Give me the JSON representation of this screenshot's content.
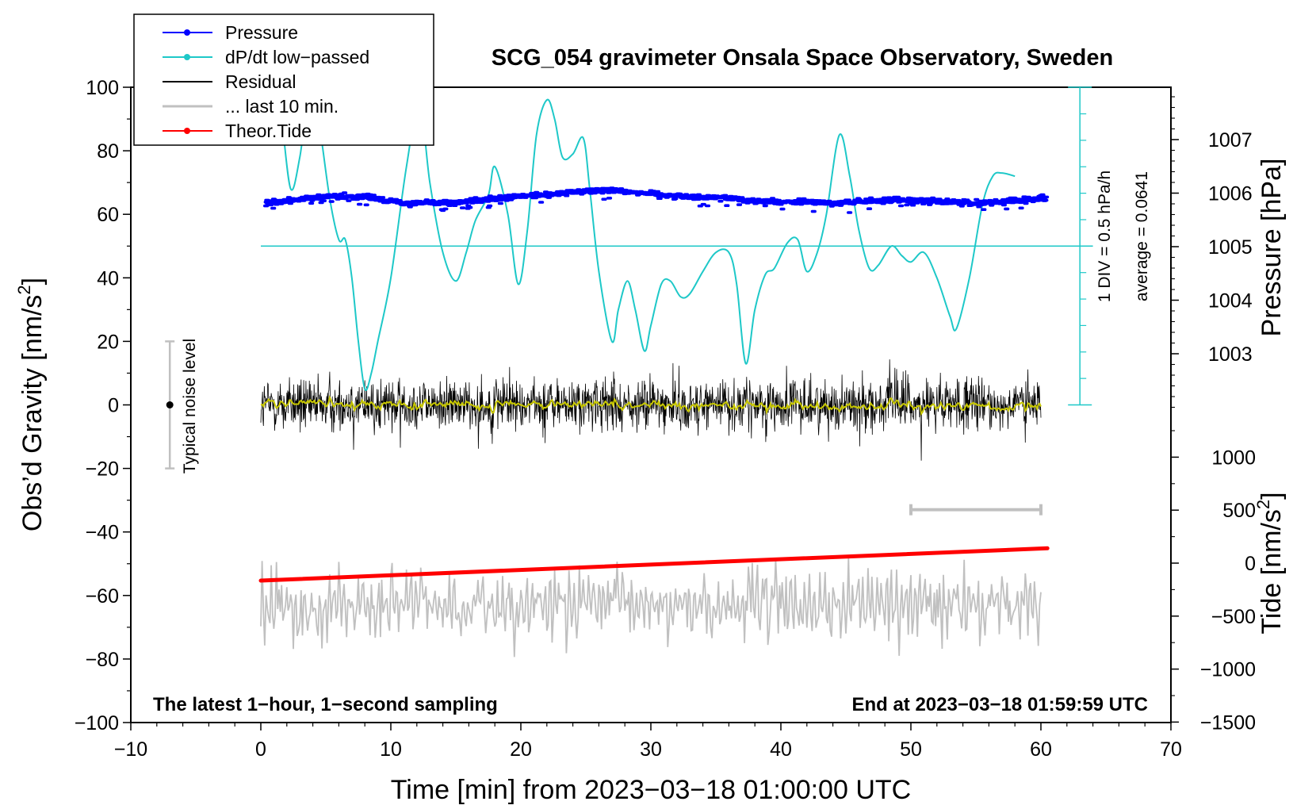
{
  "chart_data": {
    "type": "line",
    "title": "SCG_054 gravimeter Onsala Space Observatory, Sweden",
    "xlabel": "Time [min] from 2023−03−18 01:00:00 UTC",
    "ylabel_left": "Obs’d Gravity [nm/s",
    "ylabel_left_sup": "2",
    "ylabel_left_end": "]",
    "ylabel_right_top": "Pressure [hPa]",
    "ylabel_right_bottom": "Tide [nm/s",
    "ylabel_right_bottom_sup": "2",
    "ylabel_right_bottom_end": "]",
    "xlim": [
      -10,
      70
    ],
    "ylim": [
      -100,
      100
    ],
    "x_ticks": [
      "−10",
      "0",
      "10",
      "20",
      "30",
      "40",
      "50",
      "60",
      "70"
    ],
    "y_ticks": [
      "−100",
      "−80",
      "−60",
      "−40",
      "−20",
      "0",
      "20",
      "40",
      "60",
      "80",
      "100"
    ],
    "pressure_axis": {
      "ticks": [
        "1003",
        "1004",
        "1005",
        "1006",
        "1007"
      ],
      "values": [
        1003,
        1004,
        1005,
        1006,
        1007
      ]
    },
    "tide_axis": {
      "ticks": [
        "−1500",
        "−1000",
        "−500",
        "0",
        "500",
        "1000"
      ],
      "values": [
        -1500,
        -1000,
        -500,
        0,
        500,
        1000
      ]
    },
    "legend": [
      {
        "label": "Pressure",
        "color": "#0000ff",
        "marker": true
      },
      {
        "label": "dP/dt low−passed",
        "color": "#1ec8c8",
        "marker": true
      },
      {
        "label": "Residual",
        "color": "#000000",
        "marker": false
      },
      {
        "label": "... last 10 min.",
        "color": "#c0c0c0",
        "marker": false
      },
      {
        "label": "Theor.Tide",
        "color": "#ff0000",
        "marker": true
      }
    ],
    "annotations": {
      "left_bottom": "The latest 1−hour, 1−second sampling",
      "right_bottom": "End at 2023−03−18 01:59:59 UTC",
      "dpdt_scale": "1 DIV = 0.5 hPa/h",
      "dpdt_average": "average = 0.0641",
      "noise_label": "Typical noise level"
    },
    "noise_bar": {
      "x": -7,
      "low": -20,
      "high": 20,
      "center": 0
    },
    "last10_bar": {
      "x_start": 50,
      "x_end": 60,
      "level": -33
    },
    "series": [
      {
        "name": "Pressure",
        "units": "hPa",
        "color": "#0000ff",
        "x": [
          0,
          2,
          5,
          8,
          11,
          15,
          18,
          20,
          22,
          25,
          27,
          30,
          33,
          36,
          38,
          42,
          45,
          48,
          50,
          52,
          55,
          58,
          60
        ],
        "values": [
          1005.82,
          1005.86,
          1005.93,
          1005.94,
          1005.82,
          1005.82,
          1005.89,
          1005.94,
          1005.97,
          1006.04,
          1006.06,
          1005.99,
          1005.93,
          1005.92,
          1005.84,
          1005.83,
          1005.82,
          1005.86,
          1005.88,
          1005.85,
          1005.81,
          1005.86,
          1005.9
        ]
      },
      {
        "name": "dP/dt low−passed",
        "units": "y-axis position",
        "color": "#1ec8c8",
        "x": [
          1.0,
          1.6,
          2.3,
          3.0,
          3.8,
          4.5,
          5.3,
          6.0,
          6.5,
          7.0,
          7.5,
          8.0,
          8.5,
          9.0,
          10.0,
          11.2,
          12.2,
          13.0,
          14.0,
          15.0,
          15.8,
          16.5,
          17.5,
          18.0,
          19.0,
          19.8,
          20.5,
          21.2,
          22.0,
          22.6,
          23.2,
          24.0,
          24.8,
          25.3,
          26.0,
          27.0,
          27.5,
          28.2,
          28.8,
          29.5,
          30.0,
          30.8,
          31.5,
          32.3,
          33.0,
          34.0,
          35.0,
          36.0,
          36.6,
          37.3,
          38.0,
          38.8,
          39.5,
          40.5,
          41.3,
          42.0,
          42.8,
          43.5,
          44.5,
          45.3,
          46.0,
          46.8,
          47.5,
          48.5,
          49.3,
          50.0,
          51.0,
          52.0,
          53.0,
          53.5,
          54.5,
          55.5,
          56.3,
          57.0,
          58.0
        ],
        "values": [
          105,
          90,
          68,
          78,
          100,
          88,
          65,
          52,
          52,
          40,
          20,
          5,
          10,
          20,
          40,
          75,
          95,
          70,
          48,
          39,
          48,
          58,
          66,
          75,
          60,
          38,
          55,
          85,
          96,
          90,
          78,
          79,
          84,
          68,
          42,
          20,
          30,
          39,
          30,
          17,
          25,
          38,
          39,
          34,
          35,
          42,
          48,
          48,
          38,
          13,
          30,
          41,
          43,
          51,
          52,
          42,
          48,
          60,
          85,
          72,
          55,
          43,
          44,
          50,
          47,
          45,
          48,
          40,
          28,
          24,
          40,
          63,
          72,
          73,
          72
        ]
      },
      {
        "name": "Residual",
        "units": "nm/s2",
        "color": "#000000",
        "x_range": [
          0,
          60
        ],
        "amplitude_range": [
          -20,
          15
        ]
      },
      {
        "name": "... last 10 min.",
        "units": "nm/s2",
        "color": "#c0c0c0",
        "x_range": [
          0,
          60
        ],
        "center": -63,
        "amplitude_range": [
          -82,
          -46
        ]
      },
      {
        "name": "Theor.Tide",
        "units": "nm/s2",
        "color": "#ff0000",
        "x": [
          0,
          60.5
        ],
        "values": [
          -165,
          140
        ]
      }
    ]
  }
}
